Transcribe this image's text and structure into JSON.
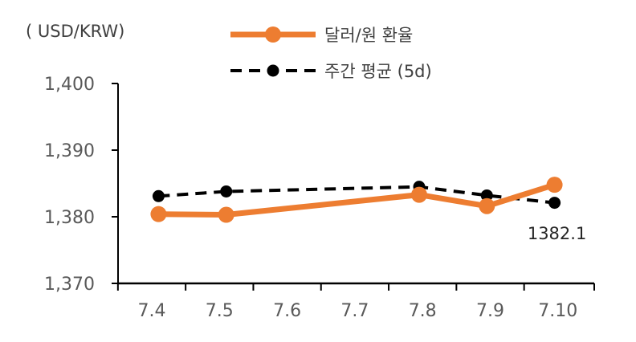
{
  "chart_data": {
    "type": "line",
    "unit_label": "( USD/KRW)",
    "categories": [
      "7.4",
      "7.5",
      "7.6",
      "7.7",
      "7.8",
      "7.9",
      "7.10"
    ],
    "x_positions": [
      0,
      1,
      2,
      3,
      4,
      5,
      6
    ],
    "ylim": [
      1370,
      1400
    ],
    "yticks": [
      1370,
      1380,
      1390,
      1400
    ],
    "ytick_labels": [
      "1,370",
      "1,380",
      "1,390",
      "1,400"
    ],
    "grid": false,
    "legend_placement": "top-center",
    "series": [
      {
        "name": "달러/원 환율",
        "color": "#ED7D31",
        "style": "solid",
        "x": [
          0.1,
          1.1,
          3.95,
          4.95,
          5.95
        ],
        "values": [
          1380.4,
          1380.3,
          1383.3,
          1381.6,
          1384.8
        ]
      },
      {
        "name": "주간 평균 (5d)",
        "color": "#000000",
        "style": "dashed",
        "x": [
          0.1,
          1.1,
          3.95,
          4.95,
          5.95
        ],
        "values": [
          1383.1,
          1383.8,
          1384.5,
          1383.2,
          1382.1
        ]
      }
    ],
    "annotations": [
      {
        "text": "1382.1",
        "series": "주간 평균 (5d)",
        "point_index": 4
      }
    ]
  }
}
